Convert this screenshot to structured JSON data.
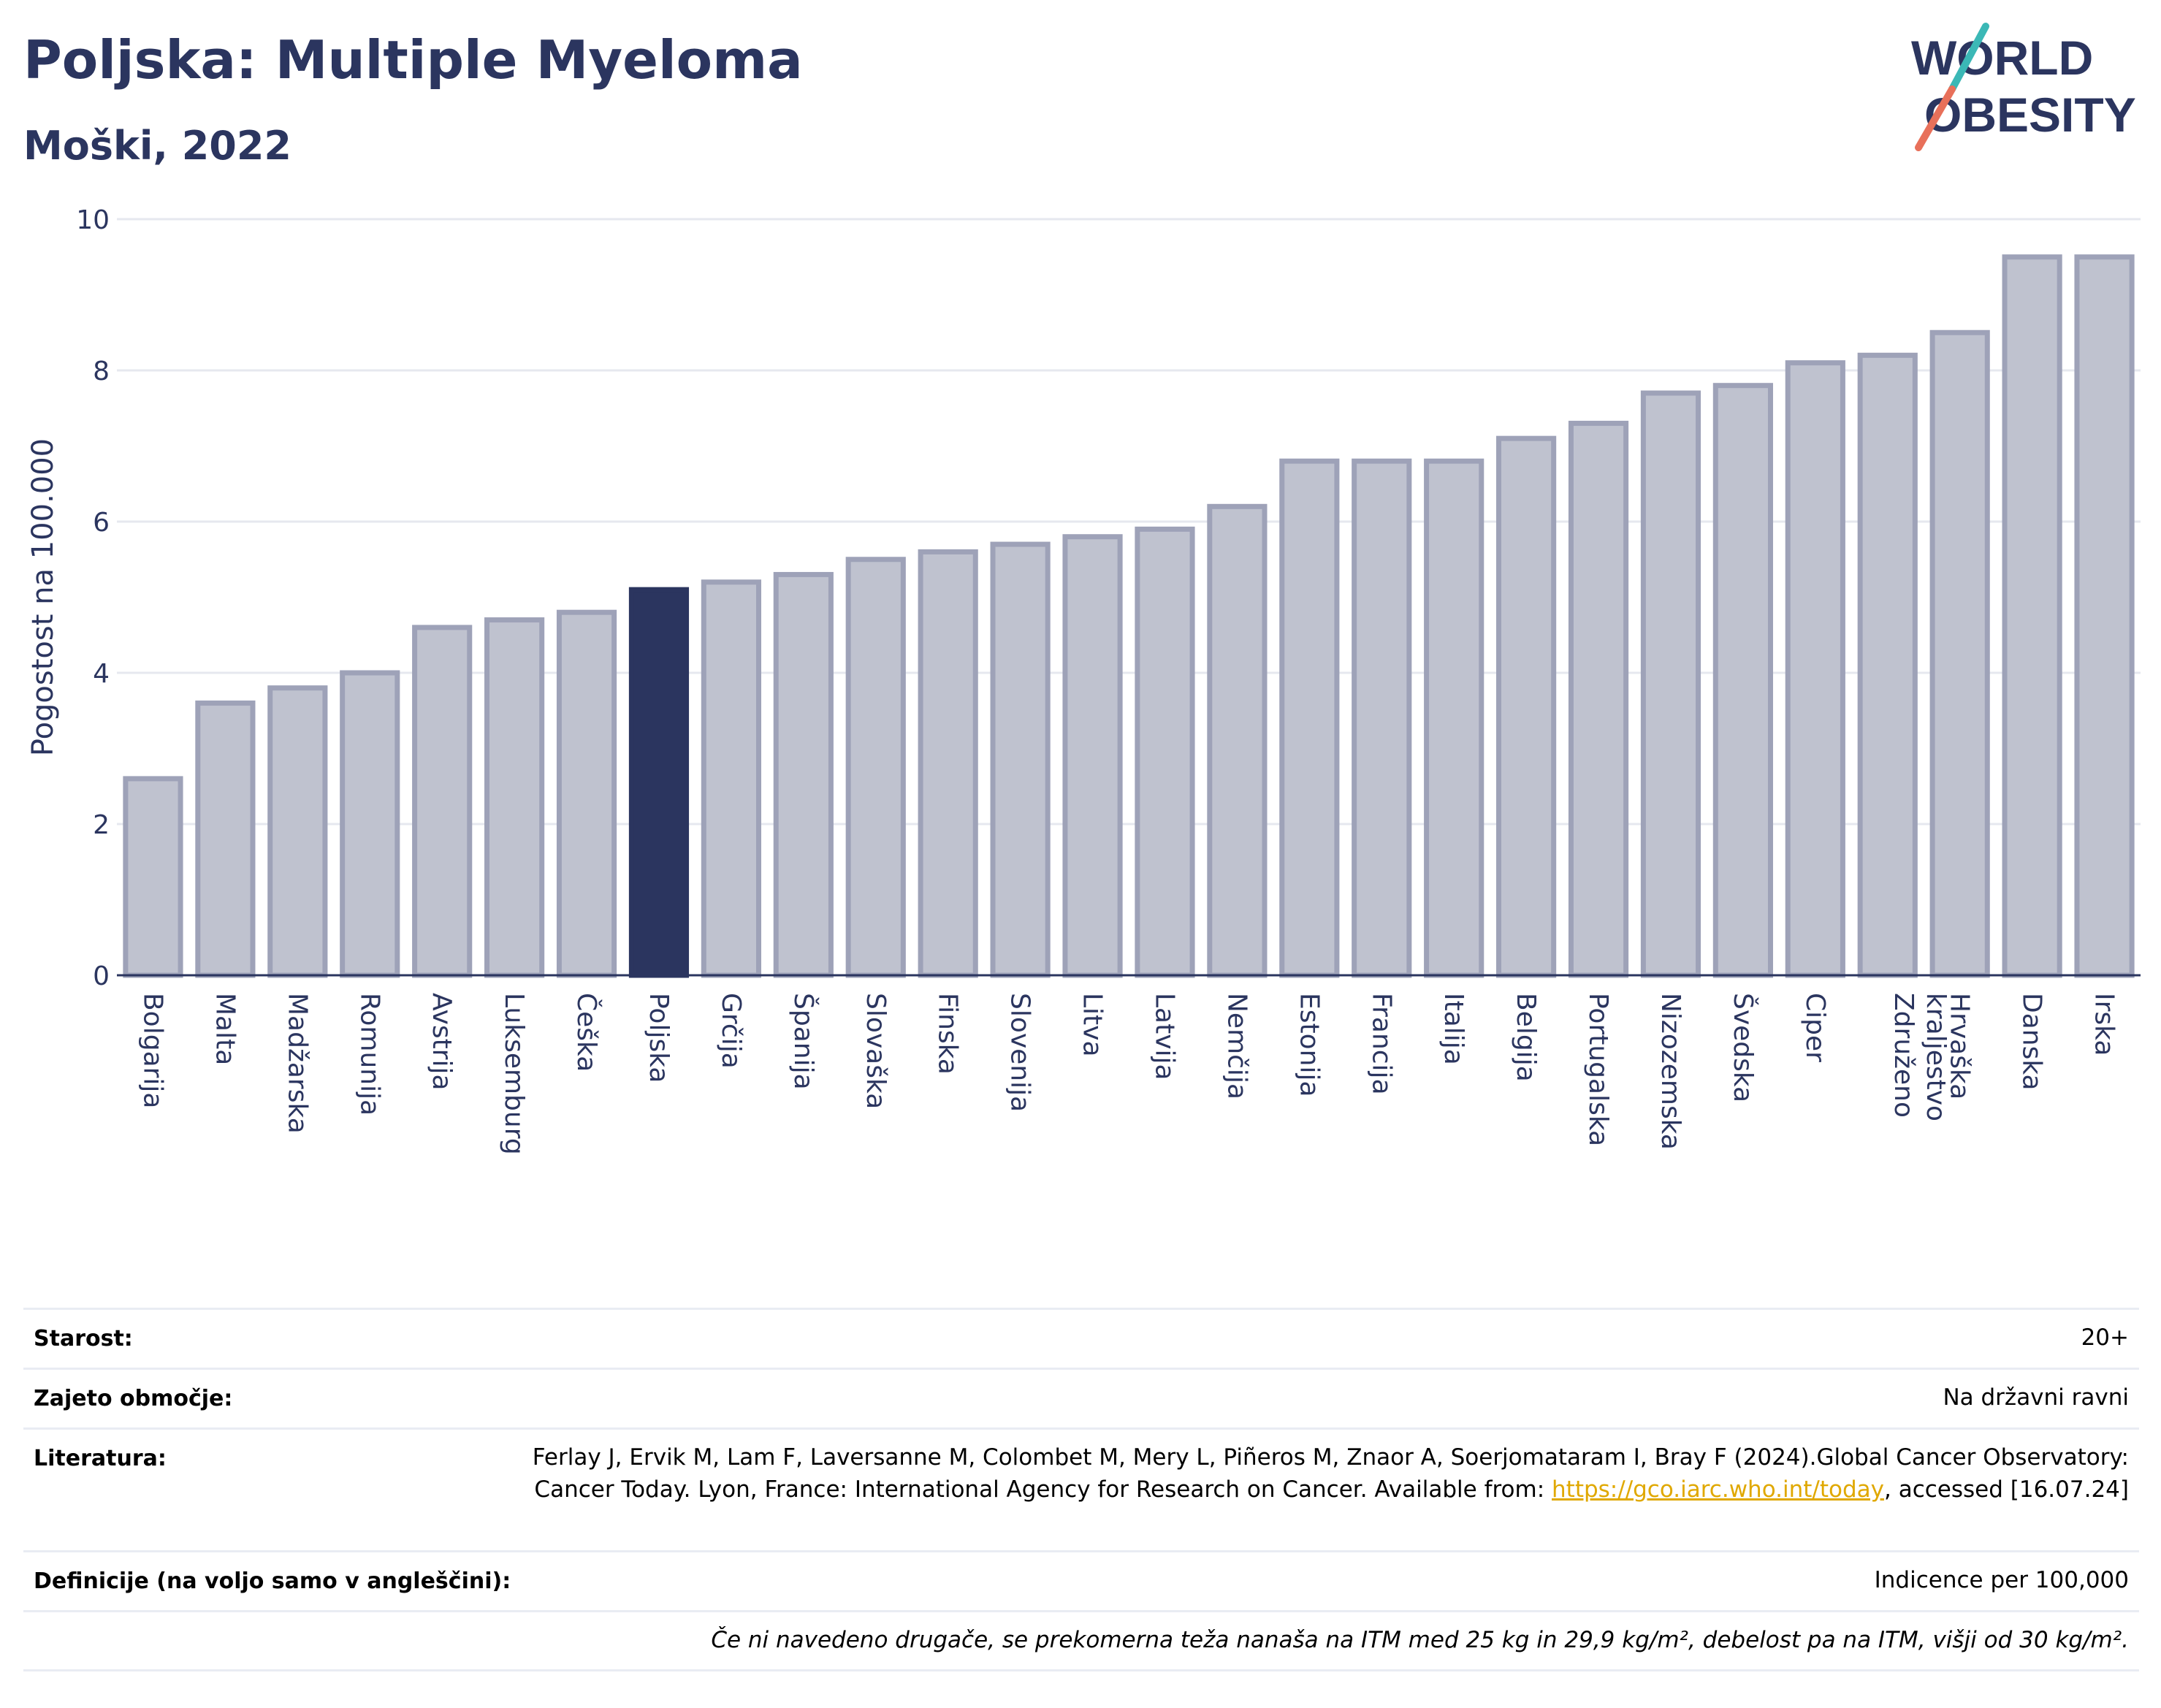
{
  "header": {
    "title": "Poljska: Multiple Myeloma",
    "subtitle": "Moški, 2022"
  },
  "logo": {
    "line1": "WORLD",
    "line2": "OBESITY"
  },
  "chart_data": {
    "type": "bar",
    "ylabel": "Pogostost na 100.000",
    "xlabel": "",
    "ylim": [
      0,
      10
    ],
    "yticks": [
      0,
      2,
      4,
      6,
      8,
      10
    ],
    "highlight": "Poljska",
    "grid": true,
    "categories": [
      "Bolgarija",
      "Malta",
      "Madžarska",
      "Romunija",
      "Avstrija",
      "Luksemburg",
      "Češka",
      "Poljska",
      "Grčija",
      "Španija",
      "Slovaška",
      "Finska",
      "Slovenija",
      "Litva",
      "Latvija",
      "Nemčija",
      "Estonija",
      "Francija",
      "Italija",
      "Belgija",
      "Portugalska",
      "Nizozemska",
      "Švedska",
      "Ciper",
      "Združeno kraljestvo",
      "Hrvaška",
      "Danska",
      "Irska"
    ],
    "values": [
      2.6,
      3.6,
      3.8,
      4.0,
      4.6,
      4.7,
      4.8,
      5.1,
      5.2,
      5.3,
      5.5,
      5.6,
      5.7,
      5.8,
      5.9,
      6.2,
      6.8,
      6.8,
      6.8,
      7.1,
      7.3,
      7.7,
      7.8,
      8.1,
      8.2,
      8.5,
      9.5,
      9.5
    ],
    "colors": {
      "bar": "#bfc2cf",
      "bar_border": "#9ea2b8",
      "highlight": "#2b355f"
    }
  },
  "meta": {
    "age_label": "Starost:",
    "age_value": "20+",
    "coverage_label": "Zajeto območje:",
    "coverage_value": "Na državni ravni",
    "reference_label": "Literatura:",
    "reference_text": "Ferlay J, Ervik M, Lam F, Laversanne M, Colombet M, Mery L, Piñeros M, Znaor A, Soerjomataram I, Bray F (2024).Global Cancer Observatory: Cancer Today. Lyon, France: International Agency for Research on Cancer. Available from: ",
    "reference_link": "https://gco.iarc.who.int/today",
    "reference_suffix": ", accessed [16.07.24]",
    "definitions_label": "Definicije (na voljo samo v angleščini):",
    "definitions_value": "Indicence per 100,000",
    "footnote": "Če ni navedeno drugače, se prekomerna teža nanaša na ITM med 25 kg in 29,9 kg/m², debelost pa na ITM, višji od 30 kg/m²."
  }
}
